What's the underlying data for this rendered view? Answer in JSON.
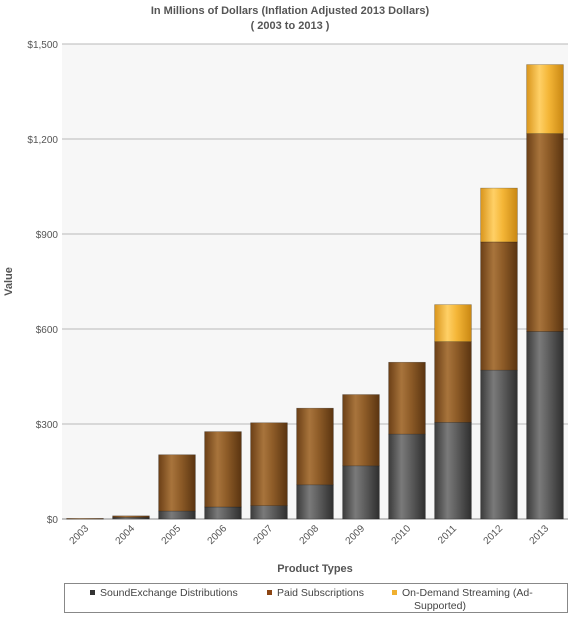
{
  "title": "In Millions of Dollars (Inflation Adjusted 2013 Dollars)",
  "subtitle": "( 2003 to 2013 )",
  "chart_data": {
    "type": "bar",
    "stacked": true,
    "title": "In Millions of Dollars (Inflation Adjusted 2013 Dollars)",
    "subtitle": "( 2003 to 2013 )",
    "xlabel": "Product Types",
    "ylabel": "Value",
    "ylim": [
      0,
      1500
    ],
    "yticks": [
      "$0",
      "$300",
      "$600",
      "$900",
      "$1,200",
      "$1,500"
    ],
    "ytick_values": [
      0,
      300,
      600,
      900,
      1200,
      1500
    ],
    "grid": true,
    "legend_position": "bottom",
    "categories": [
      "2003",
      "2004",
      "2005",
      "2006",
      "2007",
      "2008",
      "2009",
      "2010",
      "2011",
      "2012",
      "2013"
    ],
    "series": [
      {
        "name": "SoundExchange Distributions",
        "color": "#555555",
        "values": [
          0,
          5,
          25,
          38,
          42,
          108,
          168,
          268,
          305,
          470,
          592
        ]
      },
      {
        "name": "Paid Subscriptions",
        "color": "#8b5a2b",
        "values": [
          2,
          5,
          178,
          238,
          262,
          242,
          225,
          227,
          255,
          405,
          625
        ]
      },
      {
        "name": "On-Demand Streaming (Ad-Supported)",
        "color": "#f0b030",
        "values": [
          0,
          0,
          0,
          0,
          0,
          0,
          0,
          0,
          117,
          170,
          218
        ]
      }
    ]
  },
  "legend": {
    "items": [
      {
        "label": "SoundExchange Distributions",
        "color": "#333333"
      },
      {
        "label": "Paid Subscriptions",
        "color": "#8b4513"
      },
      {
        "label": "On-Demand Streaming (Ad-",
        "label2": "Supported)",
        "color": "#f0b030"
      }
    ]
  }
}
